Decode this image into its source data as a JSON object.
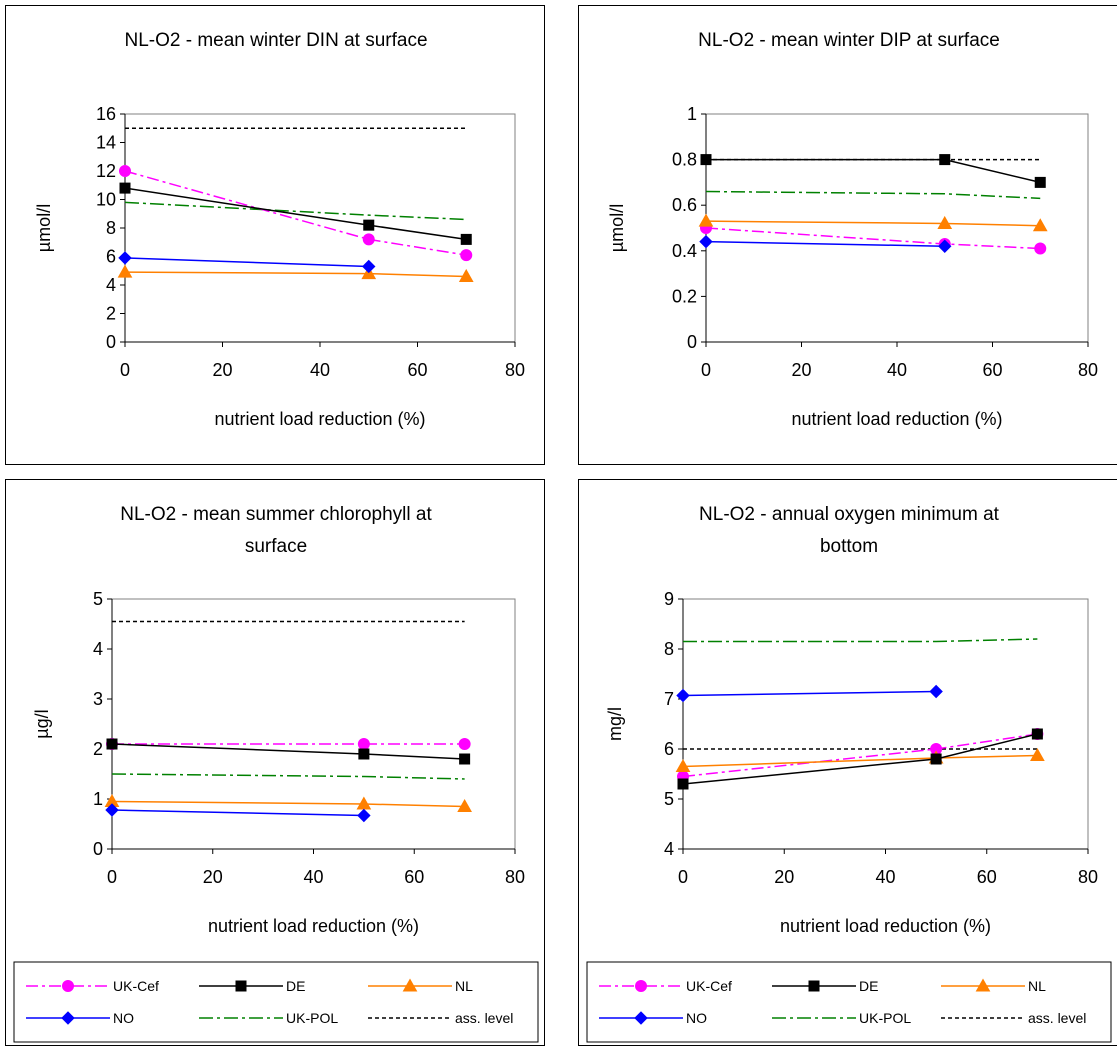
{
  "colors": {
    "UK-Cef": "#FF00FF",
    "DE": "#000000",
    "NL": "#FF8000",
    "NO": "#0000FF",
    "UK-POL": "#008000",
    "ass. level": "#000000"
  },
  "chart_data": [
    {
      "type": "line",
      "title_lines": [
        "NL-O2 - mean winter DIN at surface"
      ],
      "xlabel": "nutrient load reduction (%)",
      "ylabel": "µmol/l",
      "xlim": [
        0,
        80
      ],
      "xticks": [
        0,
        20,
        40,
        60,
        80
      ],
      "xtick_labels": [
        "0",
        "20",
        "40",
        "60",
        "80"
      ],
      "ylim": [
        0,
        16
      ],
      "yticks": [
        0,
        2,
        4,
        6,
        8,
        10,
        12,
        14,
        16
      ],
      "ytick_labels": [
        "0",
        "2",
        "4",
        "6",
        "8",
        "10",
        "12",
        "14",
        "16"
      ],
      "series": [
        {
          "name": "UK-Cef",
          "x": [
            0,
            50,
            70
          ],
          "y": [
            12.0,
            7.2,
            6.1
          ]
        },
        {
          "name": "DE",
          "x": [
            0,
            50,
            70
          ],
          "y": [
            10.8,
            8.2,
            7.2
          ]
        },
        {
          "name": "NL",
          "x": [
            0,
            50,
            70
          ],
          "y": [
            4.9,
            4.8,
            4.6
          ]
        },
        {
          "name": "NO",
          "x": [
            0,
            50
          ],
          "y": [
            5.9,
            5.3
          ]
        },
        {
          "name": "UK-POL",
          "x": [
            0,
            50,
            70
          ],
          "y": [
            9.8,
            8.9,
            8.6
          ]
        },
        {
          "name": "ass. level",
          "x": [
            0,
            70
          ],
          "y": [
            15.0,
            15.0
          ]
        }
      ]
    },
    {
      "type": "line",
      "title_lines": [
        "NL-O2 - mean winter DIP at surface"
      ],
      "xlabel": "nutrient load reduction (%)",
      "ylabel": "µmol/l",
      "xlim": [
        0,
        80
      ],
      "xticks": [
        0,
        20,
        40,
        60,
        80
      ],
      "xtick_labels": [
        "0",
        "20",
        "40",
        "60",
        "80"
      ],
      "ylim": [
        0,
        1
      ],
      "yticks": [
        0,
        0.2,
        0.4,
        0.6,
        0.8,
        1
      ],
      "ytick_labels": [
        "0",
        "0.2",
        "0.4",
        "0.6",
        "0.8",
        "1"
      ],
      "series": [
        {
          "name": "UK-Cef",
          "x": [
            0,
            50,
            70
          ],
          "y": [
            0.5,
            0.43,
            0.41
          ]
        },
        {
          "name": "DE",
          "x": [
            0,
            50,
            70
          ],
          "y": [
            0.8,
            0.8,
            0.7
          ]
        },
        {
          "name": "NL",
          "x": [
            0,
            50,
            70
          ],
          "y": [
            0.53,
            0.52,
            0.51
          ]
        },
        {
          "name": "NO",
          "x": [
            0,
            50
          ],
          "y": [
            0.44,
            0.42
          ]
        },
        {
          "name": "UK-POL",
          "x": [
            0,
            50,
            70
          ],
          "y": [
            0.66,
            0.65,
            0.63
          ]
        },
        {
          "name": "ass. level",
          "x": [
            0,
            70
          ],
          "y": [
            0.8,
            0.8
          ]
        }
      ]
    },
    {
      "type": "line",
      "title_lines": [
        "NL-O2 - mean summer chlorophyll at",
        "surface"
      ],
      "xlabel": "nutrient load reduction (%)",
      "ylabel": "µg/l",
      "xlim": [
        0,
        80
      ],
      "xticks": [
        0,
        20,
        40,
        60,
        80
      ],
      "xtick_labels": [
        "0",
        "20",
        "40",
        "60",
        "80"
      ],
      "ylim": [
        0,
        5
      ],
      "yticks": [
        0,
        1,
        2,
        3,
        4,
        5
      ],
      "ytick_labels": [
        "0",
        "1",
        "2",
        "3",
        "4",
        "5"
      ],
      "series": [
        {
          "name": "UK-Cef",
          "x": [
            0,
            50,
            70
          ],
          "y": [
            2.1,
            2.1,
            2.1
          ]
        },
        {
          "name": "DE",
          "x": [
            0,
            50,
            70
          ],
          "y": [
            2.1,
            1.9,
            1.8
          ]
        },
        {
          "name": "NL",
          "x": [
            0,
            50,
            70
          ],
          "y": [
            0.95,
            0.9,
            0.85
          ]
        },
        {
          "name": "NO",
          "x": [
            0,
            50
          ],
          "y": [
            0.78,
            0.67
          ]
        },
        {
          "name": "UK-POL",
          "x": [
            0,
            50,
            70
          ],
          "y": [
            1.5,
            1.45,
            1.4
          ]
        },
        {
          "name": "ass. level",
          "x": [
            0,
            70
          ],
          "y": [
            4.55,
            4.55
          ]
        }
      ]
    },
    {
      "type": "line",
      "title_lines": [
        "NL-O2 - annual oxygen minimum at",
        "bottom"
      ],
      "xlabel": "nutrient load reduction (%)",
      "ylabel": "mg/l",
      "xlim": [
        0,
        80
      ],
      "xticks": [
        0,
        20,
        40,
        60,
        80
      ],
      "xtick_labels": [
        "0",
        "20",
        "40",
        "60",
        "80"
      ],
      "ylim": [
        4,
        9
      ],
      "yticks": [
        4,
        5,
        6,
        7,
        8,
        9
      ],
      "ytick_labels": [
        "4",
        "5",
        "6",
        "7",
        "8",
        "9"
      ],
      "series": [
        {
          "name": "UK-Cef",
          "x": [
            0,
            50,
            70
          ],
          "y": [
            5.45,
            6.0,
            6.3
          ]
        },
        {
          "name": "DE",
          "x": [
            0,
            50,
            70
          ],
          "y": [
            5.3,
            5.8,
            6.3
          ]
        },
        {
          "name": "NL",
          "x": [
            0,
            50,
            70
          ],
          "y": [
            5.65,
            5.82,
            5.87
          ]
        },
        {
          "name": "NO",
          "x": [
            0,
            50
          ],
          "y": [
            7.07,
            7.15
          ]
        },
        {
          "name": "UK-POL",
          "x": [
            0,
            50,
            70
          ],
          "y": [
            8.15,
            8.15,
            8.2
          ]
        },
        {
          "name": "ass. level",
          "x": [
            0,
            70
          ],
          "y": [
            6.0,
            6.0
          ]
        }
      ]
    }
  ],
  "legend": {
    "items": [
      {
        "name": "UK-Cef",
        "label": "UK-Cef"
      },
      {
        "name": "DE",
        "label": "DE"
      },
      {
        "name": "NL",
        "label": "NL"
      },
      {
        "name": "NO",
        "label": "NO"
      },
      {
        "name": "UK-POL",
        "label": "UK-POL"
      },
      {
        "name": "ass. level",
        "label": "ass. level"
      }
    ]
  }
}
